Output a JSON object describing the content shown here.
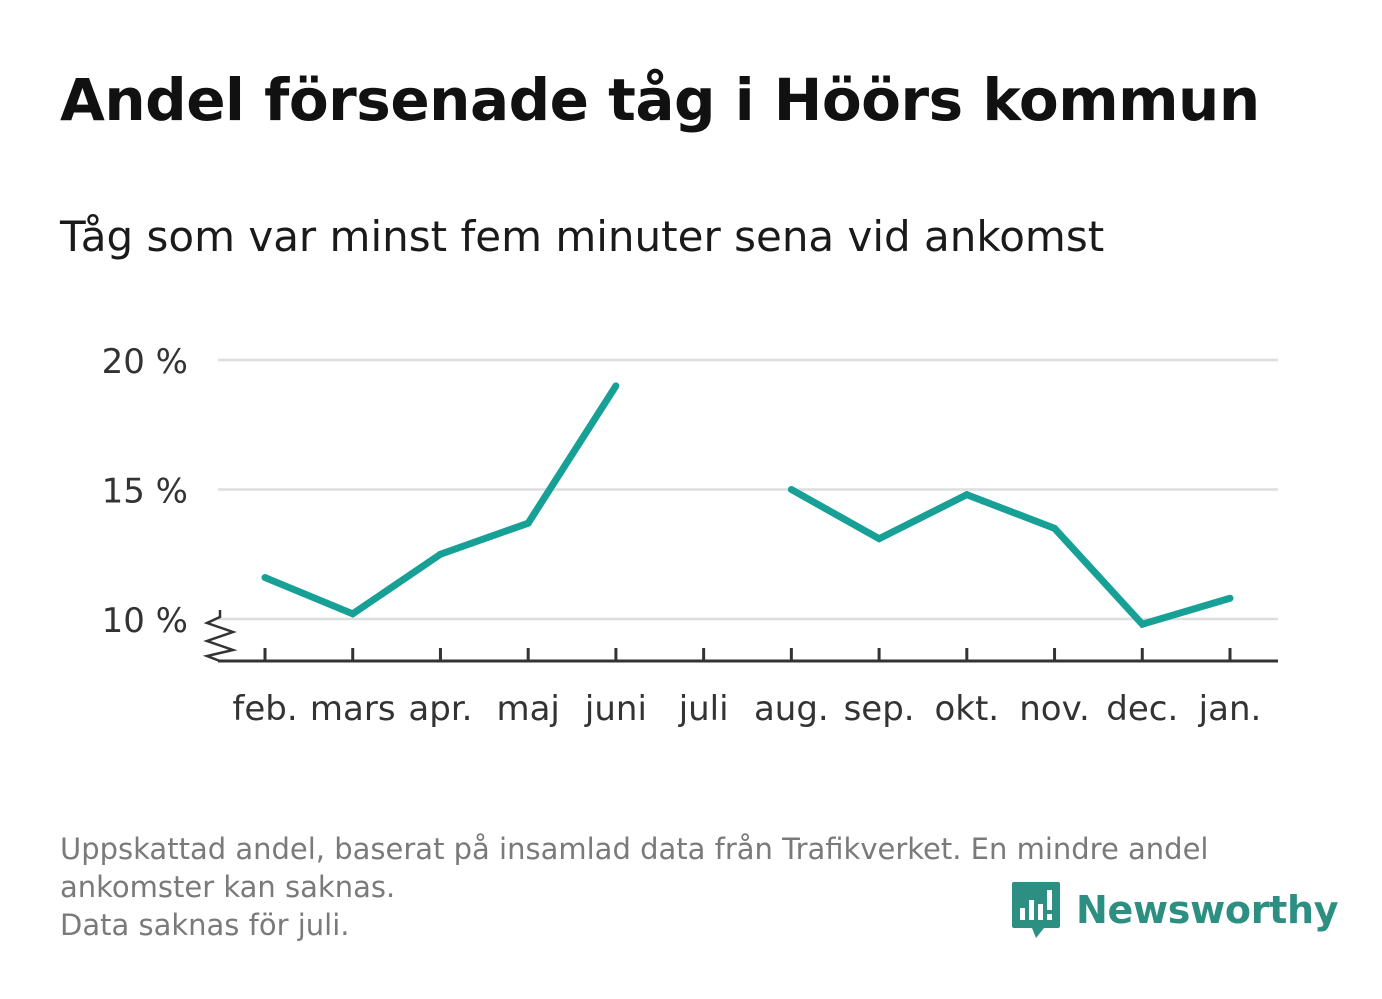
{
  "title": "Andel försenade tåg i Höörs kommun",
  "subtitle": "Tåg som var minst fem minuter sena vid ankomst",
  "chart_data": {
    "type": "line",
    "categories": [
      "feb.",
      "mars",
      "apr.",
      "maj",
      "juni",
      "juli",
      "aug.",
      "sep.",
      "okt.",
      "nov.",
      "dec.",
      "jan."
    ],
    "series": [
      {
        "values": [
          11.6,
          10.2,
          12.5,
          13.7,
          19.0,
          null,
          15.0,
          13.1,
          14.8,
          13.5,
          9.8,
          10.8
        ]
      }
    ],
    "y_ticks": [
      10,
      15,
      20
    ],
    "y_tick_labels": [
      "10 %",
      "15 %",
      "20 %"
    ],
    "ylim": [
      8.4,
      20
    ],
    "axis_break": true,
    "grid": true,
    "legend": "none",
    "line_color": "#16a096",
    "grid_color": "#dddddd",
    "axis_color": "#333333"
  },
  "footnote": {
    "line1": "Uppskattad andel, baserat på insamlad data från Trafikverket. En mindre andel",
    "line2": "ankomster kan saknas.",
    "line3": "Data saknas för juli."
  },
  "logo": {
    "text": "Newsworthy",
    "icon": "newsworthy-chart-bubble-icon",
    "color": "#2c8f82"
  }
}
